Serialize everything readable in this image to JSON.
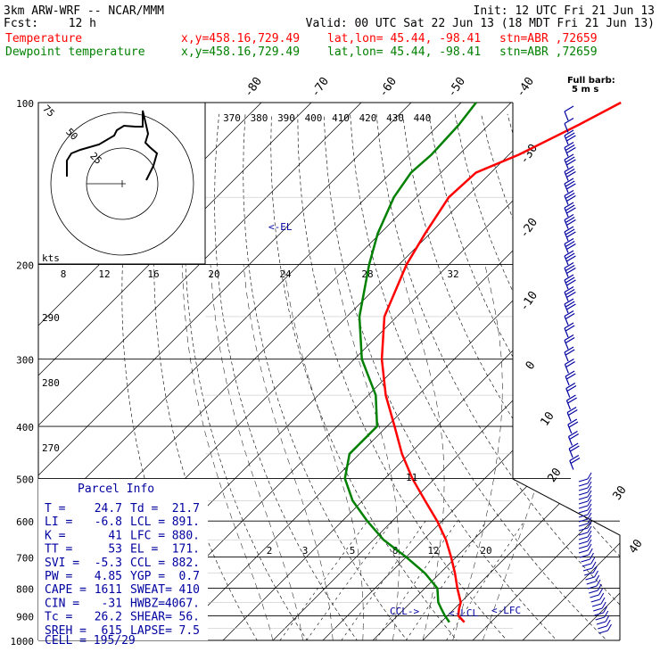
{
  "header": {
    "model": "3km ARW-WRF -- NCAR/MMM",
    "init": "Init: 12 UTC Fri 21 Jun 13",
    "fcst_label": "Fcst:",
    "fcst_value": "12 h",
    "valid": "Valid: 00 UTC Sat 22 Jun 13 (18 MDT Fri 21 Jun 13)",
    "temp_line": {
      "label": "Temperature",
      "xy": "x,y=458.16,729.49",
      "latlon": "lat,lon= 45.44, -98.41",
      "stn": "stn=ABR ,72659"
    },
    "dew_line": {
      "label": "Dewpoint temperature",
      "xy": "x,y=458.16,729.49",
      "latlon": "lat,lon= 45.44, -98.41",
      "stn": "stn=ABR ,72659"
    }
  },
  "barb_legend": {
    "line1": "Full barb:",
    "line2": "5 m s"
  },
  "pressure_labels": [
    "100",
    "200",
    "300",
    "400",
    "500",
    "600",
    "700",
    "800",
    "900",
    "1000"
  ],
  "theta_labels": [
    "370",
    "380",
    "390",
    "400",
    "410",
    "420",
    "430",
    "440"
  ],
  "theta_side_labels": [
    "290",
    "280",
    "270"
  ],
  "mixing_top_labels": [
    "8",
    "12",
    "16",
    "20",
    "24",
    "28",
    "32"
  ],
  "mixing_bottom_labels": [
    "2",
    "3",
    "5",
    "8",
    "12",
    "20"
  ],
  "temp_top_labels": [
    "-80",
    "-70",
    "-60",
    "-50",
    "-40"
  ],
  "temp_side_labels": [
    "-30",
    "-20",
    "-10",
    "0",
    "10",
    "20"
  ],
  "wind_labels": [
    "30",
    "40"
  ],
  "hodo": {
    "rings": [
      "25",
      "50",
      "75"
    ],
    "units": "kts"
  },
  "markers": {
    "el": "<-EL",
    "ccl": "CCL->",
    "lcl": "<-LCL",
    "lfc": "<-LFC",
    "eleven": "11"
  },
  "parcel_info": {
    "title": "Parcel Info",
    "rows": [
      [
        "T  =",
        "24.7",
        "Td =",
        "21.7"
      ],
      [
        "LI =",
        "-6.8",
        "LCL =",
        "891."
      ],
      [
        "K  =",
        "41",
        "LFC =",
        "880."
      ],
      [
        "TT =",
        "53",
        "EL  =",
        "171."
      ],
      [
        "SVI =",
        "-5.3",
        "CCL =",
        "882."
      ],
      [
        "PW =",
        "4.85",
        "YGP =",
        "0.7"
      ],
      [
        "CAPE =",
        "1611",
        "SWEAT=",
        "410"
      ],
      [
        "CIN =",
        "-31",
        "HWBZ=",
        "4067."
      ],
      [
        "Tc =",
        "26.2",
        "SHEAR=",
        "56."
      ],
      [
        "SREH =",
        "615",
        "LAPSE=",
        "7.5"
      ]
    ],
    "cell": "CELL = 195/29"
  },
  "colors": {
    "temp": "#ff0000",
    "dew": "#008000",
    "barb": "#0000a0",
    "hodo": "#000000"
  },
  "chart_data": {
    "type": "line",
    "title": "",
    "xlabel": "",
    "ylabel": "",
    "y_axis": "pressure (hPa)",
    "x_axis": "temperature (°C), skewed",
    "ylim": [
      1000,
      100
    ],
    "series": [
      {
        "name": "Temperature",
        "pressure": [
          925,
          900,
          875,
          850,
          800,
          750,
          700,
          650,
          600,
          550,
          500,
          450,
          400,
          350,
          300,
          250,
          200,
          175,
          150,
          135,
          125,
          110,
          100
        ],
        "values": [
          24.7,
          22.2,
          21.0,
          20.0,
          16.5,
          13.0,
          9.0,
          4.5,
          -1.0,
          -7.5,
          -14.5,
          -21.5,
          -28.5,
          -36.5,
          -44.5,
          -52.5,
          -58.5,
          -61.0,
          -63.5,
          -63.0,
          -58.0,
          -52.0,
          -48.0
        ]
      },
      {
        "name": "Dewpoint temperature",
        "pressure": [
          925,
          900,
          875,
          850,
          800,
          750,
          700,
          650,
          600,
          550,
          500,
          450,
          400,
          350,
          300,
          250,
          200,
          175,
          150,
          135,
          125,
          110,
          100
        ],
        "values": [
          21.7,
          19.5,
          17.5,
          15.5,
          12.5,
          7.0,
          0.0,
          -8.0,
          -15.0,
          -22.0,
          -28.0,
          -32.0,
          -32.0,
          -38.5,
          -48.5,
          -57.5,
          -66.0,
          -70.5,
          -74.5,
          -76.0,
          -75.5,
          -76.0,
          -77.0
        ]
      }
    ]
  }
}
